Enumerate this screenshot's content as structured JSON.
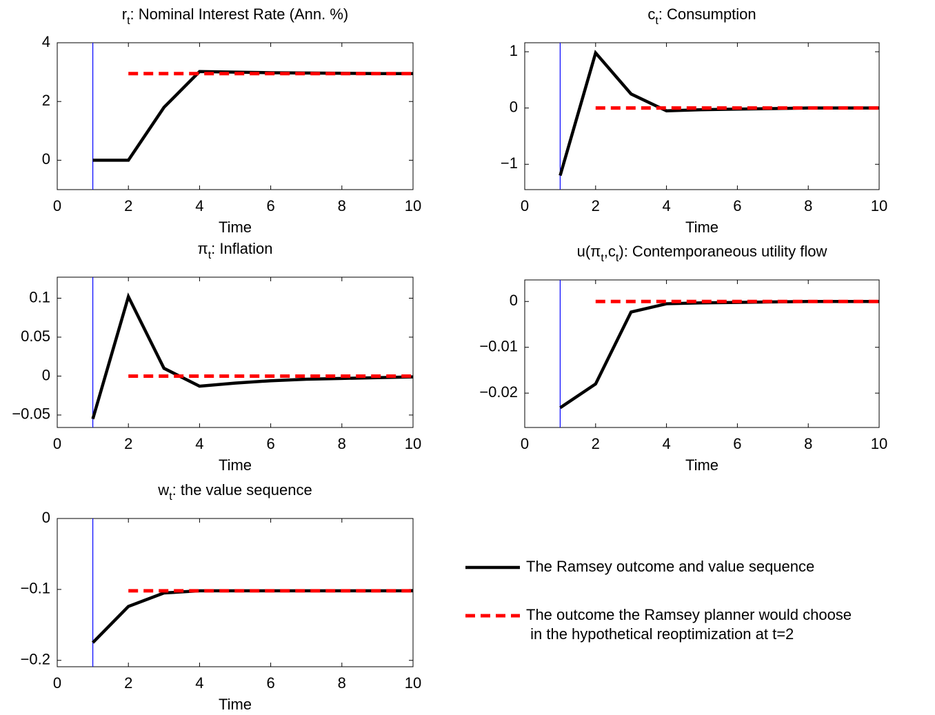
{
  "chart_data": [
    {
      "type": "line",
      "title": [
        "r",
        "t",
        ": Nominal Interest Rate (Ann. %)"
      ],
      "xlabel": "Time",
      "x": [
        1,
        2,
        3,
        4,
        5,
        6,
        7,
        8,
        9,
        10
      ],
      "xlim": [
        0,
        10
      ],
      "xticks": [
        0,
        2,
        4,
        6,
        8,
        10
      ],
      "ylim": [
        -1,
        4
      ],
      "yticks": [
        0,
        2,
        4
      ],
      "vline": 1,
      "vline_color": "#0000ff",
      "series": [
        {
          "color": "#000000",
          "dashed": false,
          "values": [
            0,
            0,
            1.8,
            3.02,
            3.0,
            2.98,
            2.97,
            2.96,
            2.95,
            2.95
          ]
        },
        {
          "color": "#ff0000",
          "dashed": true,
          "values": [
            null,
            2.95,
            2.95,
            2.95,
            2.95,
            2.95,
            2.95,
            2.95,
            2.95,
            2.95
          ]
        }
      ]
    },
    {
      "type": "line",
      "title": [
        "c",
        "t",
        ": Consumption"
      ],
      "xlabel": "Time",
      "x": [
        1,
        2,
        3,
        4,
        5,
        6,
        7,
        8,
        9,
        10
      ],
      "xlim": [
        0,
        10
      ],
      "xticks": [
        0,
        2,
        4,
        6,
        8,
        10
      ],
      "ylim": [
        -1.45,
        1.16
      ],
      "yticks": [
        {
          "value": -1,
          "label": "−1"
        },
        0,
        1
      ],
      "vline": 1,
      "vline_color": "#0000ff",
      "series": [
        {
          "color": "#000000",
          "dashed": false,
          "values": [
            -1.2,
            0.98,
            0.25,
            -0.05,
            -0.03,
            -0.02,
            -0.01,
            0,
            0,
            0
          ]
        },
        {
          "color": "#ff0000",
          "dashed": true,
          "values": [
            null,
            0,
            0,
            0,
            0,
            0,
            0,
            0,
            0,
            0
          ]
        }
      ]
    },
    {
      "type": "line",
      "title": [
        "π",
        "t",
        ": Inflation"
      ],
      "xlabel": "Time",
      "x": [
        1,
        2,
        3,
        4,
        5,
        6,
        7,
        8,
        9,
        10
      ],
      "xlim": [
        0,
        10
      ],
      "xticks": [
        0,
        2,
        4,
        6,
        8,
        10
      ],
      "ylim": [
        -0.066,
        0.127
      ],
      "yticks": [
        {
          "value": -0.05,
          "label": "−0.05"
        },
        0,
        0.05,
        0.1
      ],
      "vline": 1,
      "vline_color": "#0000ff",
      "series": [
        {
          "color": "#000000",
          "dashed": false,
          "values": [
            -0.055,
            0.102,
            0.01,
            -0.013,
            -0.009,
            -0.006,
            -0.004,
            -0.003,
            -0.002,
            -0.001
          ]
        },
        {
          "color": "#ff0000",
          "dashed": true,
          "values": [
            null,
            0,
            0,
            0,
            0,
            0,
            0,
            0,
            0,
            0
          ]
        }
      ]
    },
    {
      "type": "line",
      "title": [
        "u(π",
        "t",
        ",c",
        "t",
        "): Contemporaneous utility flow"
      ],
      "xlabel": "Time",
      "x": [
        1,
        2,
        3,
        4,
        5,
        6,
        7,
        8,
        9,
        10
      ],
      "xlim": [
        0,
        10
      ],
      "xticks": [
        0,
        2,
        4,
        6,
        8,
        10
      ],
      "ylim": [
        -0.0275,
        0.0047
      ],
      "yticks": [
        {
          "value": -0.02,
          "label": "−0.02"
        },
        {
          "value": -0.01,
          "label": "−0.01"
        },
        0
      ],
      "vline": 1,
      "vline_color": "#0000ff",
      "series": [
        {
          "color": "#000000",
          "dashed": false,
          "values": [
            -0.0232,
            -0.018,
            -0.0023,
            -0.0005,
            -0.0003,
            -0.0002,
            -0.0001,
            0,
            0,
            0
          ]
        },
        {
          "color": "#ff0000",
          "dashed": true,
          "values": [
            null,
            0,
            0,
            0,
            0,
            0,
            0,
            0,
            0,
            0
          ]
        }
      ]
    },
    {
      "type": "line",
      "title": [
        "w",
        "t",
        ": the value sequence"
      ],
      "xlabel": "Time",
      "x": [
        1,
        2,
        3,
        4,
        5,
        6,
        7,
        8,
        9,
        10
      ],
      "xlim": [
        0,
        10
      ],
      "xticks": [
        0,
        2,
        4,
        6,
        8,
        10
      ],
      "ylim": [
        -0.209,
        0
      ],
      "yticks": [
        {
          "value": -0.2,
          "label": "−0.2"
        },
        {
          "value": -0.1,
          "label": "−0.1"
        },
        0
      ],
      "vline": 1,
      "vline_color": "#0000ff",
      "series": [
        {
          "color": "#000000",
          "dashed": false,
          "values": [
            -0.175,
            -0.124,
            -0.105,
            -0.102,
            -0.102,
            -0.102,
            -0.102,
            -0.102,
            -0.102,
            -0.102
          ]
        },
        {
          "color": "#ff0000",
          "dashed": true,
          "values": [
            null,
            -0.102,
            -0.102,
            -0.102,
            -0.102,
            -0.102,
            -0.102,
            -0.102,
            -0.102,
            -0.102
          ]
        }
      ]
    }
  ],
  "legend": [
    {
      "color": "#000000",
      "dashed": false,
      "label": [
        "The Ramsey outcome and value sequence"
      ]
    },
    {
      "color": "#ff0000",
      "dashed": true,
      "label": [
        "The outcome the Ramsey planner would choose",
        " in the hypothetical reoptimization at t=2"
      ]
    }
  ]
}
